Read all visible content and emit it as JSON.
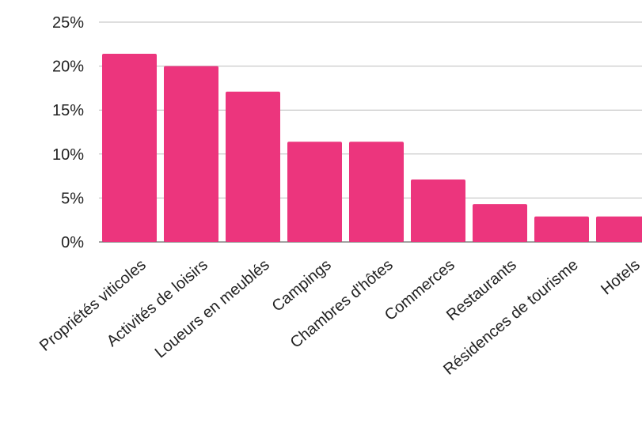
{
  "colors": {
    "bar": "#EC357D",
    "grid": "#BDBDBD",
    "text": "#222222"
  },
  "chart_data": {
    "type": "bar",
    "categories": [
      "Propriétés viticoles",
      "Activités de loisirs",
      "Loueurs en meublés",
      "Campings",
      "Chambres d'hôtes",
      "Commerces",
      "Restaurants",
      "Résidences de tourisme",
      "Hotels"
    ],
    "values": [
      21.4,
      20.0,
      17.1,
      11.4,
      11.4,
      7.1,
      4.3,
      2.9,
      2.9
    ],
    "ylim": [
      0,
      25
    ],
    "yticks": [
      0,
      5,
      10,
      15,
      20,
      25
    ],
    "yticks_labels": [
      "0%",
      "5%",
      "10%",
      "15%",
      "20%",
      "25%"
    ],
    "grid": true,
    "legend": "none"
  }
}
